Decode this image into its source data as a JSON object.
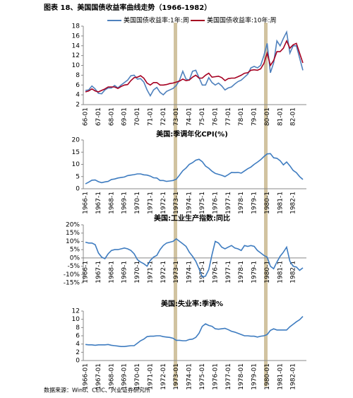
{
  "header": {
    "title": "图表 18、美国国债收益率曲线走势（1966-1982）"
  },
  "chart_data": [
    {
      "type": "line",
      "legend": "top",
      "categories": [
        "66-01",
        null,
        null,
        null,
        "67-01",
        null,
        null,
        null,
        "68-01",
        null,
        null,
        null,
        "69-01",
        null,
        null,
        null,
        "70-01",
        null,
        null,
        null,
        "71-01",
        null,
        null,
        null,
        "72-01",
        null,
        null,
        null,
        "73-01",
        null,
        null,
        null,
        "74-01",
        null,
        null,
        null,
        "75-01",
        null,
        null,
        null,
        "76-01",
        null,
        null,
        null,
        "77-01",
        null,
        null,
        null,
        "78-01",
        null,
        null,
        null,
        "79-01",
        null,
        null,
        null,
        "80-01",
        null,
        null,
        null,
        "81-01",
        null,
        null,
        null,
        "82-01",
        null,
        null,
        null
      ],
      "series": [
        {
          "name": "美国国债收益率:1年:周",
          "color": "#4f81bd",
          "values": [
            4.9,
            5.0,
            5.8,
            5.2,
            4.3,
            4.2,
            5.0,
            5.4,
            5.4,
            5.9,
            5.4,
            6.0,
            6.5,
            7.0,
            7.9,
            8.0,
            7.2,
            7.3,
            6.6,
            5.0,
            3.8,
            5.0,
            5.5,
            4.5,
            4.0,
            4.7,
            5.0,
            5.3,
            5.9,
            7.0,
            8.8,
            7.2,
            7.0,
            8.8,
            9.0,
            7.5,
            6.0,
            6.0,
            7.5,
            6.5,
            6.0,
            6.4,
            5.8,
            5.0,
            5.4,
            5.6,
            6.2,
            6.7,
            7.0,
            7.6,
            8.2,
            9.5,
            9.8,
            9.5,
            10.0,
            12.0,
            14.5,
            8.5,
            10.5,
            15.0,
            14.0,
            15.5,
            16.8,
            12.5,
            14.0,
            14.0,
            11.5,
            9.0
          ]
        },
        {
          "name": "美国国债收益率:10年:周",
          "color": "#a50021",
          "values": [
            4.6,
            4.8,
            5.2,
            4.8,
            4.6,
            4.9,
            5.2,
            5.6,
            5.6,
            5.6,
            5.3,
            5.7,
            6.0,
            6.1,
            6.9,
            7.5,
            7.6,
            7.9,
            7.4,
            6.4,
            6.0,
            6.5,
            6.5,
            6.0,
            6.0,
            6.1,
            6.3,
            6.4,
            6.6,
            6.8,
            7.2,
            6.9,
            7.0,
            7.6,
            8.0,
            7.4,
            7.4,
            8.0,
            8.4,
            7.6,
            7.7,
            7.8,
            7.5,
            6.9,
            7.3,
            7.4,
            7.4,
            7.7,
            8.0,
            8.4,
            8.5,
            9.0,
            9.1,
            9.0,
            9.3,
            10.4,
            12.5,
            10.0,
            11.0,
            12.8,
            12.8,
            13.5,
            15.0,
            13.5,
            14.2,
            14.5,
            12.5,
            10.5
          ]
        }
      ],
      "ylim": [
        2,
        18
      ],
      "yticks": [
        2,
        4,
        6,
        8,
        10,
        12,
        14,
        16,
        18
      ]
    },
    {
      "type": "line",
      "title": "美国:季调年化CPI(%)",
      "categories": [
        "1966-1",
        null,
        null,
        null,
        "1967-1",
        null,
        null,
        null,
        "1968-1",
        null,
        null,
        null,
        "1969-1",
        null,
        null,
        null,
        "1970-1",
        null,
        null,
        null,
        "1971-1",
        null,
        null,
        null,
        "1972-1",
        null,
        null,
        null,
        "1973-1",
        null,
        null,
        null,
        "1974-1",
        null,
        null,
        null,
        "1975-1",
        null,
        null,
        null,
        "1976-1",
        null,
        null,
        null,
        "1977-1",
        null,
        null,
        null,
        "1978-1",
        null,
        null,
        null,
        "1979-1",
        null,
        null,
        null,
        "1980-1",
        null,
        null,
        null,
        "1981-1",
        null,
        null,
        null,
        "1982-1",
        null,
        null,
        null
      ],
      "series": [
        {
          "color": "#3e7cc0",
          "values": [
            2.0,
            2.7,
            3.5,
            3.6,
            2.9,
            2.5,
            2.8,
            3.0,
            3.8,
            4.0,
            4.4,
            4.6,
            4.8,
            5.4,
            5.6,
            5.8,
            6.1,
            6.1,
            5.7,
            5.6,
            5.2,
            4.5,
            4.4,
            3.4,
            3.4,
            3.0,
            3.2,
            3.4,
            3.9,
            5.6,
            7.4,
            8.5,
            10.0,
            10.7,
            11.7,
            12.1,
            11.1,
            9.3,
            8.4,
            7.2,
            6.3,
            5.9,
            5.5,
            5.0,
            5.8,
            6.7,
            6.6,
            6.7,
            6.4,
            7.3,
            8.2,
            8.9,
            10.0,
            10.9,
            11.9,
            13.2,
            14.3,
            14.4,
            12.7,
            12.5,
            11.5,
            9.8,
            11.0,
            9.4,
            7.5,
            6.6,
            5.0,
            3.8
          ]
        }
      ],
      "ylim": [
        0,
        20
      ],
      "yticks": [
        0,
        5,
        10,
        15,
        20
      ]
    },
    {
      "type": "line",
      "title": "美国:工业生产指数:同比",
      "categories": [
        "1966-1",
        null,
        null,
        null,
        "1967-1",
        null,
        null,
        null,
        "1968-1",
        null,
        null,
        null,
        "1969-1",
        null,
        null,
        null,
        "1970-1",
        null,
        null,
        null,
        "1971-1",
        null,
        null,
        null,
        "1972-1",
        null,
        null,
        null,
        "1973-1",
        null,
        null,
        null,
        "1974-1",
        null,
        null,
        null,
        "1975-1",
        null,
        null,
        null,
        "1976-1",
        null,
        null,
        null,
        "1977-1",
        null,
        null,
        null,
        "1978-1",
        null,
        null,
        null,
        "1979-1",
        null,
        null,
        null,
        "1980-1",
        null,
        null,
        null,
        "1981-1",
        null,
        null,
        null,
        "1982-1",
        null,
        null,
        null
      ],
      "series": [
        {
          "color": "#3e7cc0",
          "values": [
            9.5,
            9.0,
            9.0,
            8.0,
            3.0,
            0.5,
            -0.5,
            2.5,
            4.5,
            5.0,
            5.0,
            5.5,
            6.0,
            5.5,
            4.5,
            2.5,
            -1.0,
            -2.5,
            -3.5,
            -5.0,
            -1.5,
            0.5,
            1.5,
            5.0,
            7.5,
            9.0,
            9.5,
            10.0,
            11.5,
            10.0,
            8.5,
            7.0,
            3.5,
            1.0,
            -2.0,
            -6.5,
            -11.5,
            -11.0,
            -7.0,
            2.0,
            10.0,
            9.0,
            6.5,
            5.5,
            6.5,
            7.5,
            6.0,
            5.5,
            4.5,
            7.5,
            7.0,
            7.5,
            7.0,
            4.5,
            3.0,
            1.5,
            0.5,
            -5.0,
            -6.5,
            -2.5,
            1.0,
            3.5,
            6.5,
            -2.0,
            -5.0,
            -5.5,
            -7.5,
            -6.0
          ]
        }
      ],
      "ylim": [
        -15,
        20
      ],
      "yticks": [
        {
          "value": 20,
          "label": "20%"
        },
        {
          "value": 15,
          "label": "15%"
        },
        {
          "value": 10,
          "label": "10%"
        },
        {
          "value": 5,
          "label": "5%"
        },
        {
          "value": 0,
          "label": "0%"
        },
        {
          "value": -5,
          "label": "-5%"
        },
        {
          "value": -10,
          "label": "-10%"
        },
        {
          "value": -15,
          "label": "-15%"
        }
      ]
    },
    {
      "type": "line",
      "title": "美国:失业率:季调%",
      "categories": [
        "1966-01",
        null,
        null,
        null,
        "1967-01",
        null,
        null,
        null,
        "1968-01",
        null,
        null,
        null,
        "1969-01",
        null,
        null,
        null,
        "1970-01",
        null,
        null,
        null,
        "1971-01",
        null,
        null,
        null,
        "1972-01",
        null,
        null,
        null,
        "1973-01",
        null,
        null,
        null,
        "1974-01",
        null,
        null,
        null,
        "1975-01",
        null,
        null,
        null,
        "1976-01",
        null,
        null,
        null,
        "1977-01",
        null,
        null,
        null,
        "1978-01",
        null,
        null,
        null,
        "1979-01",
        null,
        null,
        null,
        "1980-01",
        null,
        null,
        null,
        "1981-01",
        null,
        null,
        null,
        "1982-01",
        null,
        null,
        null
      ],
      "series": [
        {
          "color": "#3e7cc0",
          "values": [
            3.9,
            3.8,
            3.8,
            3.7,
            3.8,
            3.8,
            3.8,
            3.9,
            3.7,
            3.6,
            3.5,
            3.4,
            3.4,
            3.5,
            3.6,
            3.6,
            4.2,
            4.8,
            5.2,
            5.8,
            5.9,
            5.9,
            6.0,
            6.0,
            5.8,
            5.7,
            5.6,
            5.4,
            4.9,
            4.9,
            4.8,
            4.8,
            5.1,
            5.2,
            5.6,
            6.6,
            8.3,
            8.9,
            8.5,
            8.3,
            7.7,
            7.6,
            7.7,
            7.8,
            7.5,
            7.1,
            6.9,
            6.6,
            6.3,
            6.0,
            6.0,
            5.9,
            5.9,
            5.7,
            5.9,
            6.0,
            6.3,
            7.3,
            7.7,
            7.4,
            7.4,
            7.4,
            7.4,
            8.2,
            8.8,
            9.4,
            9.9,
            10.7
          ]
        }
      ],
      "ylim": [
        0,
        12
      ],
      "yticks": [
        0,
        2,
        4,
        6,
        8,
        10,
        12
      ]
    }
  ],
  "footer": {
    "source": "数据来源：Wind、CEIC、兴业证券研究所"
  }
}
